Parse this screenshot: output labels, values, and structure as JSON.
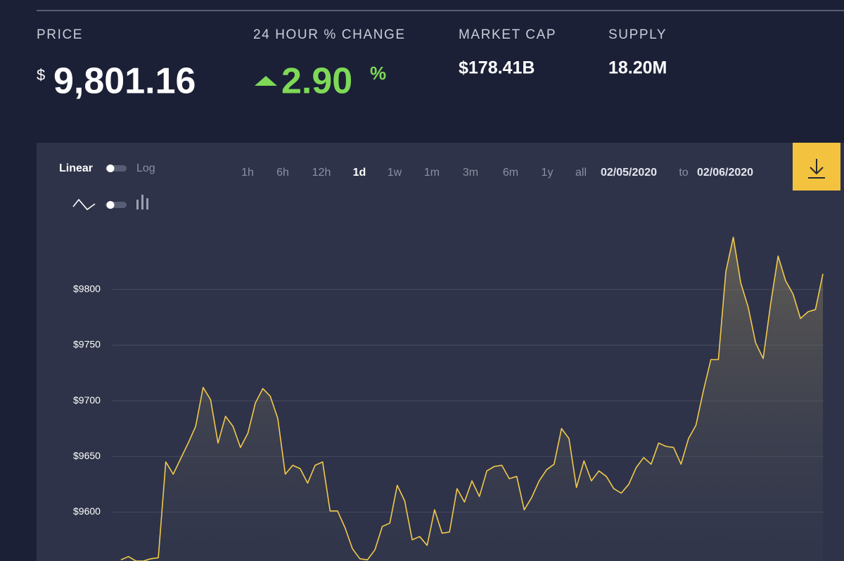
{
  "header_stats": [
    {
      "label": "PRICE",
      "currency": "$",
      "value": "9,801.16"
    },
    {
      "label": "24 HOUR % CHANGE",
      "value": "2.90",
      "unit": "%"
    },
    {
      "label": "MARKET CAP",
      "value": "$178.41B"
    },
    {
      "label": "SUPPLY",
      "value": "18.20M"
    }
  ],
  "controls": {
    "scale_options": [
      "Linear",
      "Log"
    ],
    "time_ranges": [
      {
        "label": "1h"
      },
      {
        "label": "6h"
      },
      {
        "label": "12h"
      },
      {
        "label": "1d",
        "active": true
      },
      {
        "label": "1w"
      },
      {
        "label": "1m"
      },
      {
        "label": "3m"
      },
      {
        "label": "6m"
      },
      {
        "label": "1y"
      },
      {
        "label": "all"
      }
    ],
    "date_from": "02/05/2020",
    "date_separator": "to",
    "date_to": "02/06/2020"
  },
  "chart_data": {
    "type": "line",
    "color": "#f2c94c",
    "values": [
      9557,
      9560,
      9556,
      9556,
      9558,
      9559,
      9645,
      9634,
      9648,
      9662,
      9677,
      9712,
      9701,
      9662,
      9686,
      9677,
      9658,
      9671,
      9698,
      9711,
      9704,
      9684,
      9634,
      9642,
      9639,
      9626,
      9642,
      9645,
      9601,
      9601,
      9586,
      9567,
      9558,
      9557,
      9566,
      9587,
      9590,
      9624,
      9610,
      9575,
      9578,
      9570,
      9602,
      9581,
      9582,
      9621,
      9609,
      9628,
      9614,
      9637,
      9641,
      9642,
      9630,
      9632,
      9602,
      9613,
      9628,
      9638,
      9643,
      9675,
      9666,
      9622,
      9646,
      9628,
      9637,
      9632,
      9621,
      9617,
      9625,
      9640,
      9649,
      9643,
      9662,
      9659,
      9658,
      9643,
      9666,
      9678,
      9709,
      9737,
      9737,
      9816,
      9847,
      9806,
      9784,
      9752,
      9738,
      9787,
      9830,
      9808,
      9796,
      9774,
      9780,
      9782,
      9814
    ],
    "ylim": [
      9556,
      9858
    ],
    "yticks": [
      {
        "value": 9600,
        "label": "$9600"
      },
      {
        "value": 9650,
        "label": "$9650"
      },
      {
        "value": 9700,
        "label": "$9700"
      },
      {
        "value": 9750,
        "label": "$9750"
      },
      {
        "value": 9800,
        "label": "$9800"
      }
    ],
    "grid": true
  }
}
